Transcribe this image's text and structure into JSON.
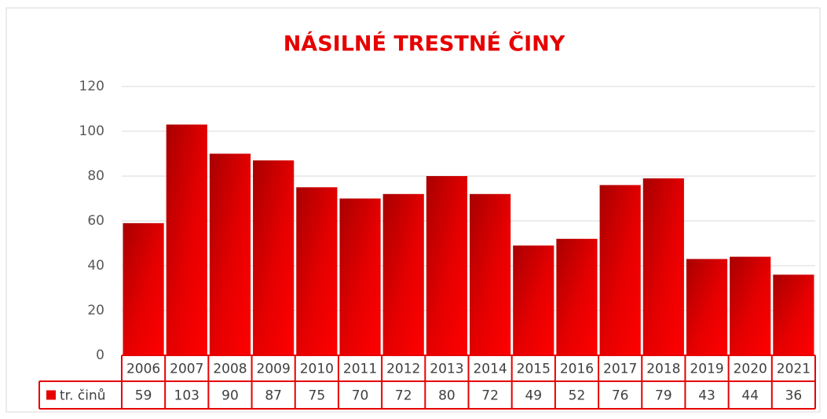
{
  "chart_data": {
    "type": "bar",
    "title": "NÁSILNÉ TRESTNÉ ČINY",
    "categories": [
      "2006",
      "2007",
      "2008",
      "2009",
      "2010",
      "2011",
      "2012",
      "2013",
      "2014",
      "2015",
      "2016",
      "2017",
      "2018",
      "2019",
      "2020",
      "2021"
    ],
    "series": [
      {
        "name": "tr. činů",
        "color": "#e60000",
        "values": [
          59,
          103,
          90,
          87,
          75,
          70,
          72,
          80,
          72,
          49,
          52,
          76,
          79,
          43,
          44,
          36
        ]
      }
    ],
    "ylim": [
      0,
      120
    ],
    "yticks": [
      0,
      20,
      40,
      60,
      80,
      100,
      120
    ],
    "grid": true,
    "data_table": true
  }
}
